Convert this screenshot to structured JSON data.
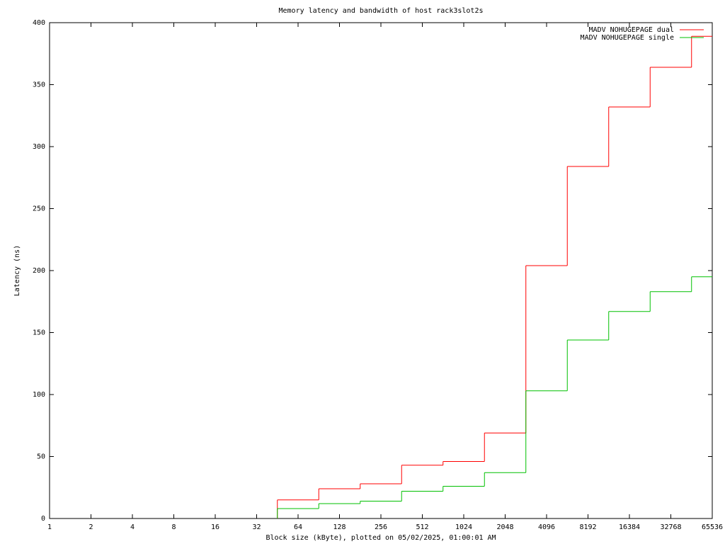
{
  "chart_data": {
    "type": "line",
    "step": "histeps",
    "title": "Memory latency and bandwidth of host rack3slot2s",
    "xlabel": "Block size (kByte), plotted on 05/02/2025, 01:00:01 AM",
    "ylabel": "Latency (ns)",
    "log_x": 2,
    "x": [
      64,
      128,
      256,
      512,
      1024,
      2048,
      4096,
      8192,
      16384,
      32768,
      65536
    ],
    "series": [
      {
        "name": "MADV NOHUGEPAGE dual",
        "color": "#ff0000",
        "values": [
          15,
          24,
          28,
          43,
          46,
          69,
          204,
          284,
          332,
          364,
          389
        ]
      },
      {
        "name": "MADV NOHUGEPAGE single",
        "color": "#00c000",
        "values": [
          8,
          12,
          14,
          22,
          26,
          37,
          103,
          144,
          167,
          183,
          195
        ]
      }
    ],
    "xlim": [
      1,
      65536
    ],
    "xticks": [
      1,
      2,
      4,
      8,
      16,
      32,
      64,
      128,
      256,
      512,
      1024,
      2048,
      4096,
      8192,
      16384,
      32768,
      65536
    ],
    "ylim": [
      0,
      400
    ],
    "yticks": [
      0,
      50,
      100,
      150,
      200,
      250,
      300,
      350,
      400
    ],
    "grid": false,
    "legend": "top-right"
  }
}
